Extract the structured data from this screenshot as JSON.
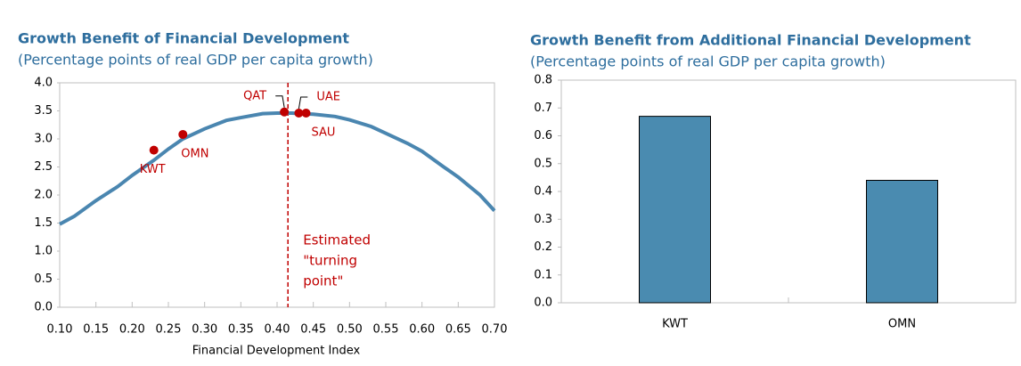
{
  "chart_data": [
    {
      "type": "line",
      "title": "Growth Benefit of Financial Development",
      "subtitle": "(Percentage points of real GDP per capita growth)",
      "x_label": "Financial Development Index",
      "x": [
        0.1,
        0.12,
        0.15,
        0.18,
        0.2,
        0.23,
        0.25,
        0.27,
        0.3,
        0.33,
        0.35,
        0.38,
        0.4,
        0.42,
        0.45,
        0.48,
        0.5,
        0.53,
        0.55,
        0.58,
        0.6,
        0.63,
        0.65,
        0.68,
        0.7
      ],
      "series": [
        {
          "name": "Growth benefit",
          "color": "#4a86b0",
          "values": [
            1.48,
            1.62,
            1.9,
            2.15,
            2.35,
            2.62,
            2.82,
            3.0,
            3.18,
            3.33,
            3.38,
            3.45,
            3.46,
            3.46,
            3.44,
            3.4,
            3.34,
            3.22,
            3.1,
            2.92,
            2.78,
            2.5,
            2.32,
            2.0,
            1.72
          ]
        }
      ],
      "points": [
        {
          "label": "QAT",
          "x": 0.41,
          "y": 3.48
        },
        {
          "label": "UAE",
          "x": 0.43,
          "y": 3.46
        },
        {
          "label": "SAU",
          "x": 0.44,
          "y": 3.46
        },
        {
          "label": "KWT",
          "x": 0.23,
          "y": 2.8
        },
        {
          "label": "OMN",
          "x": 0.27,
          "y": 3.08
        }
      ],
      "point_color": "#c00000",
      "turning_point": 0.415,
      "annotation": [
        "Estimated",
        "\"turning",
        "point\""
      ],
      "xlim": [
        0.1,
        0.7
      ],
      "xticks": [
        {
          "value": 0.1,
          "label": "0.10"
        },
        0.15,
        {
          "value": 0.2,
          "label": "0.20"
        },
        0.25,
        {
          "value": 0.3,
          "label": "0.30"
        },
        0.35,
        {
          "value": 0.4,
          "label": "0.40"
        },
        0.45,
        {
          "value": 0.5,
          "label": "0.50"
        },
        0.55,
        {
          "value": 0.6,
          "label": "0.60"
        },
        0.65,
        {
          "value": 0.7,
          "label": "0.70"
        }
      ],
      "ylim": [
        0,
        4
      ],
      "yticks": [
        {
          "value": 0,
          "label": "0.0"
        },
        0.5,
        {
          "value": 1,
          "label": "1.0"
        },
        1.5,
        {
          "value": 2,
          "label": "2.0"
        },
        2.5,
        {
          "value": 3,
          "label": "3.0"
        },
        3.5,
        {
          "value": 4,
          "label": "4.0"
        }
      ]
    },
    {
      "type": "bar",
      "title": "Growth Benefit from Additional Financial Development",
      "subtitle": "(Percentage points of real GDP per capita growth)",
      "categories": [
        "KWT",
        "OMN"
      ],
      "values": [
        0.67,
        0.44
      ],
      "color": "#4a8bb0",
      "ylim": [
        0,
        0.8
      ],
      "yticks": [
        {
          "value": 0,
          "label": "0.0"
        },
        0.1,
        0.2,
        0.3,
        0.4,
        0.5,
        0.6,
        0.7,
        0.8
      ]
    }
  ]
}
